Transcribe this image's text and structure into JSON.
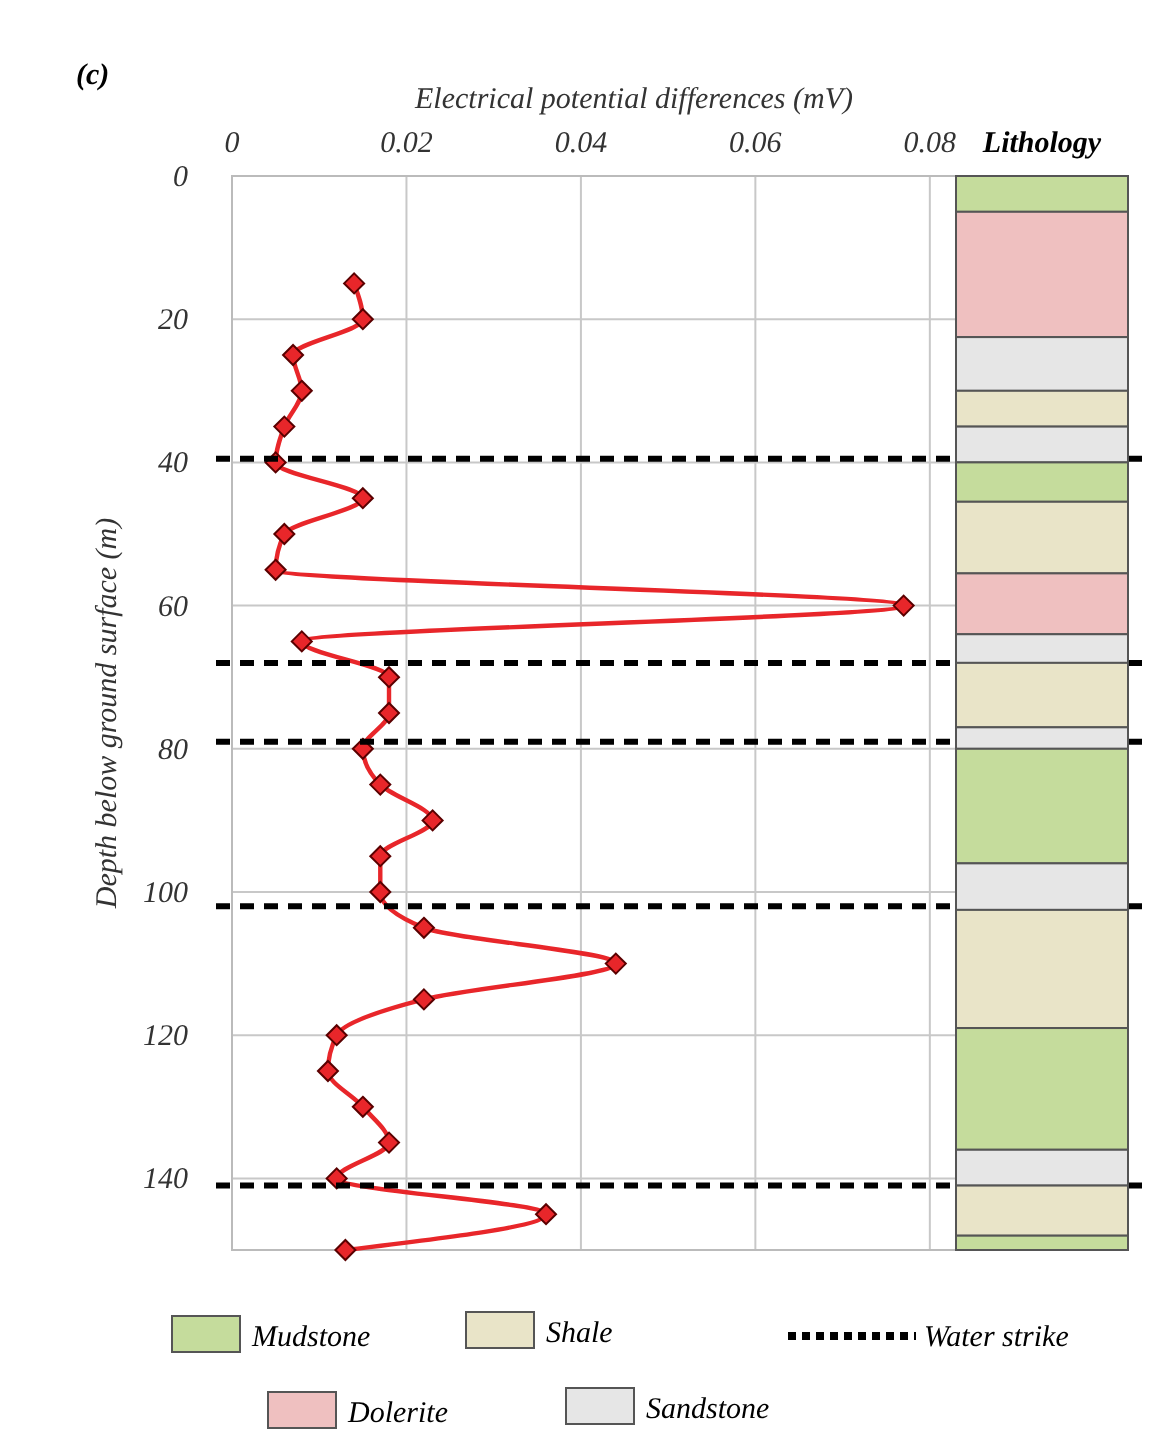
{
  "chart_data": [
    {
      "type": "line",
      "annotations": [
        "(c)"
      ],
      "xlabel": "Electrical potential differences (mV)",
      "ylabel": "Depth below ground surface (m)",
      "xlim": [
        0,
        0.083
      ],
      "xticks": [
        0,
        0.02,
        0.04,
        0.06,
        0.08
      ],
      "ylim": [
        150,
        0
      ],
      "yticks": [
        0,
        20,
        40,
        60,
        80,
        100,
        120,
        140
      ],
      "grid": true,
      "marker": "diamond",
      "line_style": "solid",
      "legend": "bottom",
      "series": [
        {
          "color": "#e8262a",
          "x": [
            0.014,
            0.015,
            0.007,
            0.008,
            0.006,
            0.005,
            0.015,
            0.006,
            0.005,
            0.077,
            0.008,
            0.018,
            0.018,
            0.015,
            0.017,
            0.023,
            0.017,
            0.017,
            0.022,
            0.044,
            0.022,
            0.012,
            0.011,
            0.015,
            0.018,
            0.012,
            0.036,
            0.013
          ],
          "values": [
            15,
            20,
            25,
            30,
            35,
            40,
            45,
            50,
            55,
            60,
            65,
            70,
            75,
            80,
            85,
            90,
            95,
            100,
            105,
            110,
            115,
            120,
            125,
            130,
            135,
            140,
            145,
            150
          ]
        }
      ],
      "ref_lines": [
        {
          "axis": "y",
          "value": 39.5,
          "label": "Water strike",
          "color": "#000000",
          "line_style": "dashed"
        },
        {
          "axis": "y",
          "value": 68,
          "color": "#000000",
          "line_style": "dashed"
        },
        {
          "axis": "y",
          "value": 79,
          "color": "#000000",
          "line_style": "dashed"
        },
        {
          "axis": "y",
          "value": 102,
          "color": "#000000",
          "line_style": "dashed"
        },
        {
          "axis": "y",
          "value": 141,
          "color": "#000000",
          "line_style": "dashed"
        }
      ]
    },
    {
      "type": "bar",
      "title": "Lithology",
      "stacked": true,
      "categories": [
        null
      ],
      "ylim": [
        150,
        0
      ],
      "legend": "bottom",
      "series": [
        {
          "name": "Mudstone",
          "color": "#c5dc9c",
          "values": [
            5
          ]
        },
        {
          "name": "Dolerite",
          "color": "#efc0c0",
          "values": [
            17.5
          ]
        },
        {
          "name": "Sandstone",
          "color": "#e6e6e6",
          "values": [
            7.5
          ]
        },
        {
          "name": "Shale",
          "color": "#e9e4c8",
          "values": [
            5
          ]
        },
        {
          "color": "#e6e6e6",
          "values": [
            5
          ]
        },
        {
          "color": "#c5dc9c",
          "values": [
            5.5
          ]
        },
        {
          "color": "#e9e4c8",
          "values": [
            10
          ]
        },
        {
          "color": "#efc0c0",
          "values": [
            8.5
          ]
        },
        {
          "color": "#e6e6e6",
          "values": [
            4
          ]
        },
        {
          "color": "#e9e4c8",
          "values": [
            9
          ]
        },
        {
          "color": "#e6e6e6",
          "values": [
            3
          ]
        },
        {
          "color": "#c5dc9c",
          "values": [
            16
          ]
        },
        {
          "color": "#e6e6e6",
          "values": [
            6.5
          ]
        },
        {
          "color": "#e9e4c8",
          "values": [
            16.5
          ]
        },
        {
          "color": "#c5dc9c",
          "values": [
            17
          ]
        },
        {
          "color": "#e6e6e6",
          "values": [
            5
          ]
        },
        {
          "color": "#e9e4c8",
          "values": [
            7
          ]
        },
        {
          "color": "#c5dc9c",
          "values": [
            2
          ]
        }
      ]
    }
  ]
}
